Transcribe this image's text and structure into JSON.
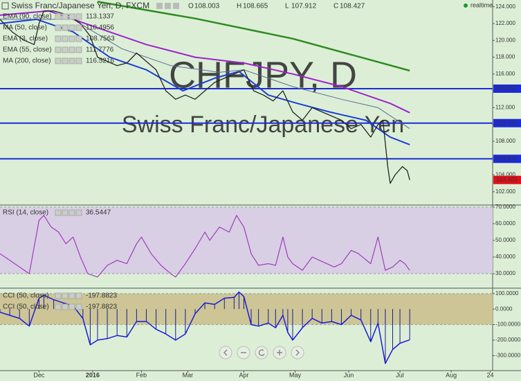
{
  "status": "realtime",
  "chart_data": [
    {
      "type": "candlestick",
      "title": "Swiss Franc/Japanese Yen, D, FXCM",
      "ohlc": [
        {
          "label": "O",
          "value": 108.003
        },
        {
          "label": "H",
          "value": 108.665
        },
        {
          "label": "L",
          "value": 107.912
        },
        {
          "label": "C",
          "value": 108.427
        }
      ],
      "watermark": [
        "CHFJPY, D",
        "Swiss Franc/Japanese Yen"
      ],
      "xlim": [
        0,
        202
      ],
      "ylim": [
        100.5,
        124.8
      ],
      "yticks": [
        {
          "value": 102,
          "label": "102.000"
        },
        {
          "value": 104,
          "label": "104.000"
        },
        {
          "value": 106,
          "label": "106.000"
        },
        {
          "value": 108,
          "label": "108.000"
        },
        {
          "value": 110,
          "label": "110.000"
        },
        {
          "value": 112,
          "label": "112.000"
        },
        {
          "value": 114,
          "label": "114.000"
        },
        {
          "value": 116,
          "label": "116.000"
        },
        {
          "value": 118,
          "label": "118.000"
        },
        {
          "value": 120,
          "label": "120.000"
        },
        {
          "value": 122,
          "label": "122.000"
        },
        {
          "value": 124,
          "label": "124.000"
        }
      ],
      "legend": [
        {
          "name": "EMA (90, close)",
          "value": 113.1337,
          "color": "#8e24aa"
        },
        {
          "name": "MA (50, close)",
          "value": 110.4956,
          "color": "#1a3fd6"
        },
        {
          "name": "EMA (3, close)",
          "value": 108.7563,
          "color": "#1a3fd6"
        },
        {
          "name": "EMA (55, close)",
          "value": 111.7776,
          "color": "#5a6a9a"
        },
        {
          "name": "MA (200, close)",
          "value": 116.5216,
          "color": "#2e8b22"
        }
      ],
      "hlines": [
        {
          "value": 114.257,
          "color": "#1c2bd8"
        },
        {
          "value": 110.16,
          "label": "110.160",
          "color": "#1c2bd8"
        },
        {
          "value": 105.913,
          "color": "#1c2bd8"
        }
      ],
      "last_price": {
        "value": 103.403,
        "color": "#e0101a"
      },
      "series": [
        {
          "color": "#2e8b22",
          "width": 2.5,
          "x": [
            40,
            80,
            120,
            168
          ],
          "values": [
            124.6,
            122.6,
            120.2,
            116.4
          ]
        },
        {
          "color": "#a020d0",
          "width": 2,
          "x": [
            0,
            20,
            40,
            60,
            80,
            100,
            120,
            140,
            160,
            168
          ],
          "values": [
            123,
            123.5,
            121.5,
            119.5,
            118,
            117.3,
            116,
            114.5,
            112.5,
            111.4
          ]
        },
        {
          "color": "#5a6a9a",
          "width": 1,
          "x": [
            0,
            30,
            50,
            70,
            90,
            100,
            120,
            140,
            155,
            168
          ],
          "values": [
            122.5,
            122.5,
            119,
            117,
            116.2,
            116.5,
            114.5,
            113,
            112,
            109.5
          ]
        },
        {
          "color": "#1a3fd6",
          "width": 2,
          "x": [
            0,
            15,
            30,
            45,
            60,
            75,
            88,
            98,
            110,
            122,
            135,
            150,
            160,
            168
          ],
          "values": [
            122,
            122.5,
            121,
            118,
            116.5,
            114,
            115.5,
            116.3,
            113.5,
            112.5,
            111.5,
            110.5,
            108.5,
            107.6
          ]
        },
        {
          "color": "#222222",
          "width": 1.3,
          "x": [
            0,
            5,
            10,
            14,
            16,
            18,
            22,
            28,
            33,
            37,
            40,
            44,
            48,
            52,
            56,
            60,
            64,
            68,
            72,
            76,
            80,
            84,
            88,
            92,
            96,
            100,
            104,
            108,
            112,
            116,
            120,
            124,
            128,
            132,
            136,
            140,
            144,
            148,
            152,
            155,
            157,
            159,
            160,
            162,
            165,
            167,
            168
          ],
          "values": [
            122.5,
            121,
            120,
            119.5,
            122,
            123.5,
            123.5,
            123,
            122,
            120.5,
            118,
            117.5,
            117,
            117.3,
            118.5,
            117.5,
            116.5,
            114,
            113,
            113.5,
            113,
            114,
            115,
            115.5,
            116,
            116.5,
            114,
            113.5,
            112.8,
            114,
            111.5,
            110.5,
            112,
            111.5,
            111,
            110.5,
            109.5,
            110,
            108.5,
            110,
            110.5,
            105,
            103,
            104,
            105,
            104.5,
            103.4
          ]
        }
      ]
    },
    {
      "type": "line",
      "xlim": [
        0,
        202
      ],
      "ylim": [
        21.7,
        70.8
      ],
      "yticks": [
        {
          "value": 30,
          "label": "30.0000"
        },
        {
          "value": 40,
          "label": "40.0000"
        },
        {
          "value": 50,
          "label": "50.0000"
        },
        {
          "value": 60,
          "label": "60.0000"
        },
        {
          "value": 70,
          "label": "70.0000"
        }
      ],
      "band": [
        30,
        70
      ],
      "band_color": "#d8cfe4",
      "legend": [
        {
          "name": "RSI (14, close)",
          "value": 36.5447,
          "color": "#8e24aa"
        }
      ],
      "series": [
        {
          "color": "#a23bbd",
          "width": 1.2,
          "x": [
            0,
            4,
            8,
            12,
            16,
            18,
            21,
            24,
            27,
            30,
            33,
            36,
            40,
            44,
            48,
            52,
            56,
            58,
            62,
            66,
            70,
            72,
            76,
            80,
            84,
            86,
            90,
            94,
            97,
            100,
            103,
            106,
            110,
            113,
            116,
            118,
            120,
            124,
            128,
            131,
            134,
            137,
            140,
            144,
            147,
            152,
            155,
            158,
            161,
            164,
            166,
            168
          ],
          "values": [
            42,
            38,
            34,
            30,
            62,
            65,
            58,
            55,
            48,
            52,
            40,
            30,
            28,
            35,
            38,
            36,
            48,
            52,
            42,
            35,
            30,
            28,
            36,
            45,
            55,
            50,
            58,
            55,
            65,
            58,
            42,
            35,
            36,
            35,
            52,
            40,
            36,
            32,
            40,
            38,
            36,
            34,
            36,
            44,
            42,
            36,
            52,
            32,
            34,
            38,
            36,
            32
          ]
        }
      ]
    },
    {
      "type": "cci",
      "xlim": [
        0,
        202
      ],
      "ylim": [
        -396,
        130
      ],
      "yticks": [
        {
          "value": 100,
          "label": "100.0000"
        },
        {
          "value": 0,
          "label": "0.0000"
        },
        {
          "value": -100,
          "label": "-100.0000"
        },
        {
          "value": -200,
          "label": "-200.0000"
        },
        {
          "value": -300,
          "label": "-300.0000"
        }
      ],
      "xticks": [
        {
          "value": 16,
          "label": "Dec"
        },
        {
          "value": 38,
          "label": "2016"
        },
        {
          "value": 58,
          "label": "Feb"
        },
        {
          "value": 77,
          "label": "Mar"
        },
        {
          "value": 100,
          "label": "Apr"
        },
        {
          "value": 121,
          "label": "May"
        },
        {
          "value": 143,
          "label": "Jun"
        },
        {
          "value": 164,
          "label": "Jul"
        },
        {
          "value": 185,
          "label": "Aug"
        },
        {
          "value": 201,
          "label": "24"
        }
      ],
      "band": [
        -100,
        100
      ],
      "band_color": "#cdc596",
      "legend": [
        {
          "name": "CCI (50, close)",
          "value": -197.8823,
          "color": "#1a1adb"
        },
        {
          "name": "CCI (50, close)",
          "value": -197.8823,
          "color": "#1a1adb"
        }
      ],
      "series": [
        {
          "color": "#1a1adb",
          "width": 1.5,
          "bars": true,
          "x": [
            0,
            4,
            8,
            12,
            16,
            18,
            22,
            26,
            30,
            34,
            37,
            40,
            44,
            48,
            52,
            56,
            60,
            64,
            68,
            72,
            76,
            80,
            84,
            88,
            92,
            96,
            98,
            100,
            103,
            106,
            110,
            113,
            116,
            118,
            120,
            124,
            128,
            132,
            136,
            140,
            144,
            148,
            152,
            155,
            158,
            161,
            164,
            168
          ],
          "values": [
            -20,
            -40,
            -60,
            -110,
            70,
            90,
            60,
            40,
            20,
            -60,
            -230,
            -200,
            -190,
            -170,
            -180,
            -80,
            -80,
            -130,
            -160,
            -200,
            -160,
            -30,
            40,
            30,
            70,
            75,
            110,
            80,
            -100,
            -110,
            -90,
            -120,
            -40,
            -150,
            -200,
            -120,
            -60,
            -90,
            -80,
            -100,
            -40,
            -70,
            -210,
            -90,
            -350,
            -260,
            -220,
            -198
          ]
        }
      ]
    }
  ]
}
